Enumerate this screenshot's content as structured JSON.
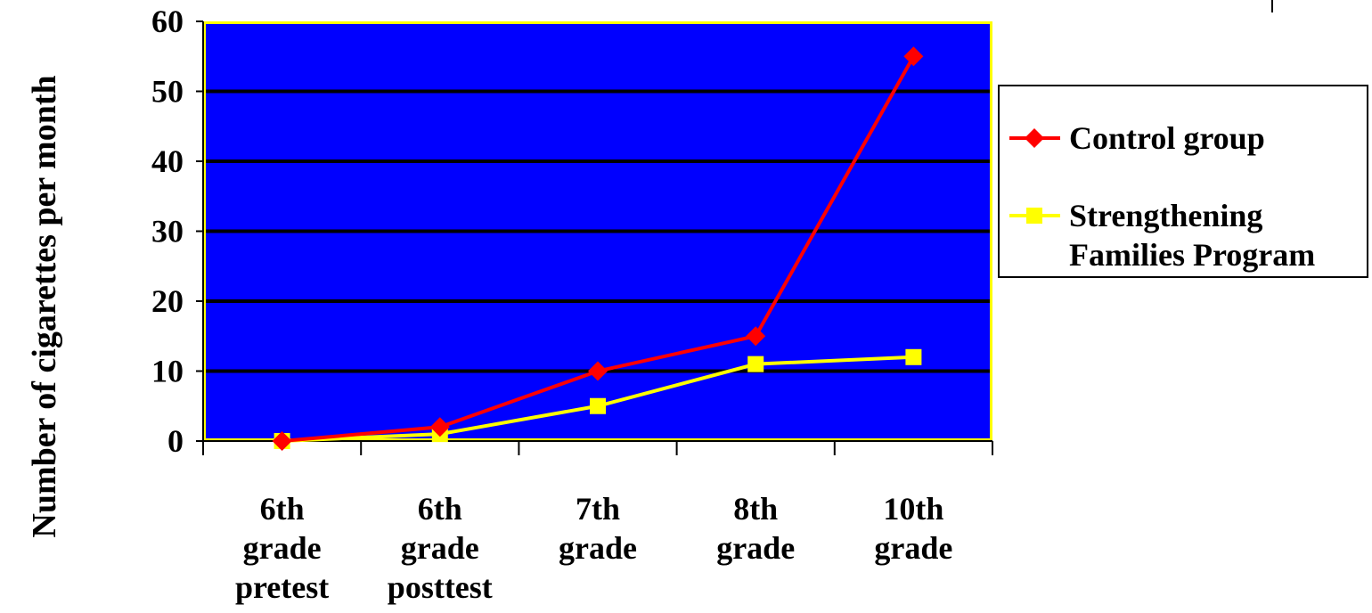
{
  "chart_data": {
    "type": "line",
    "categories": [
      [
        "6th",
        "grade",
        "pretest"
      ],
      [
        "6th",
        "grade",
        "posttest"
      ],
      [
        "7th",
        "grade"
      ],
      [
        "8th",
        "grade"
      ],
      [
        "10th",
        "grade"
      ]
    ],
    "series": [
      {
        "name": "Control group",
        "values": [
          0,
          2,
          10,
          15,
          55
        ],
        "color": "#ff0000",
        "marker": "diamond"
      },
      {
        "name": "Strengthening Families Program",
        "name_lines": [
          "Strengthening",
          "Families Program"
        ],
        "values": [
          0,
          1,
          5,
          11,
          12
        ],
        "color": "#ffff00",
        "marker": "square"
      }
    ],
    "title": "",
    "xlabel": "",
    "ylabel": "Number of cigarettes per month",
    "ylim": [
      0,
      60
    ],
    "yticks": [
      0,
      10,
      20,
      30,
      40,
      50,
      60
    ],
    "grid": true,
    "plot_background": "#0000ff",
    "plot_border": "#ffff00",
    "gridline_color": "#000000",
    "legend_position": "right"
  }
}
